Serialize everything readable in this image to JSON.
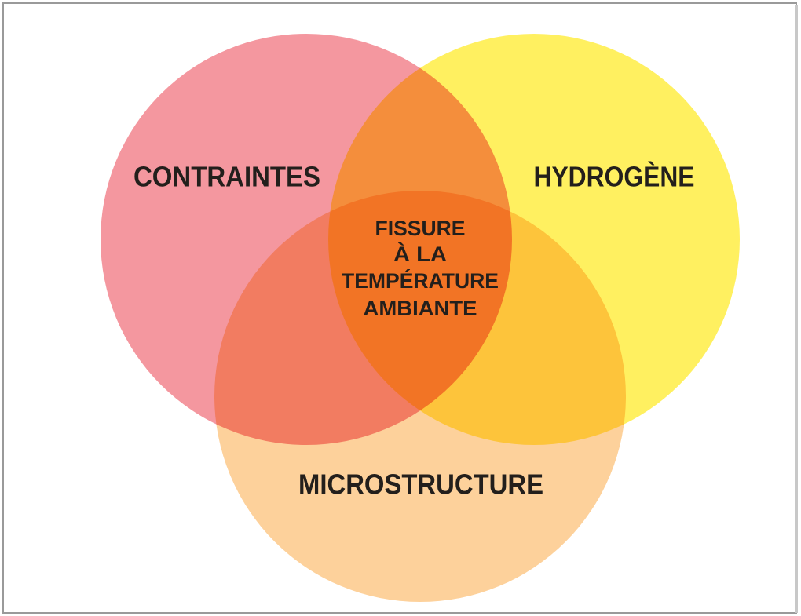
{
  "venn": {
    "sets": [
      {
        "label": "CONTRAINTES"
      },
      {
        "label": "HYDROGÈNE"
      },
      {
        "label": "MICROSTRUCTURE"
      }
    ],
    "intersection": {
      "lines": [
        "FISSURE",
        "À LA",
        "TEMPÉRATURE",
        "AMBIANTE"
      ]
    }
  }
}
